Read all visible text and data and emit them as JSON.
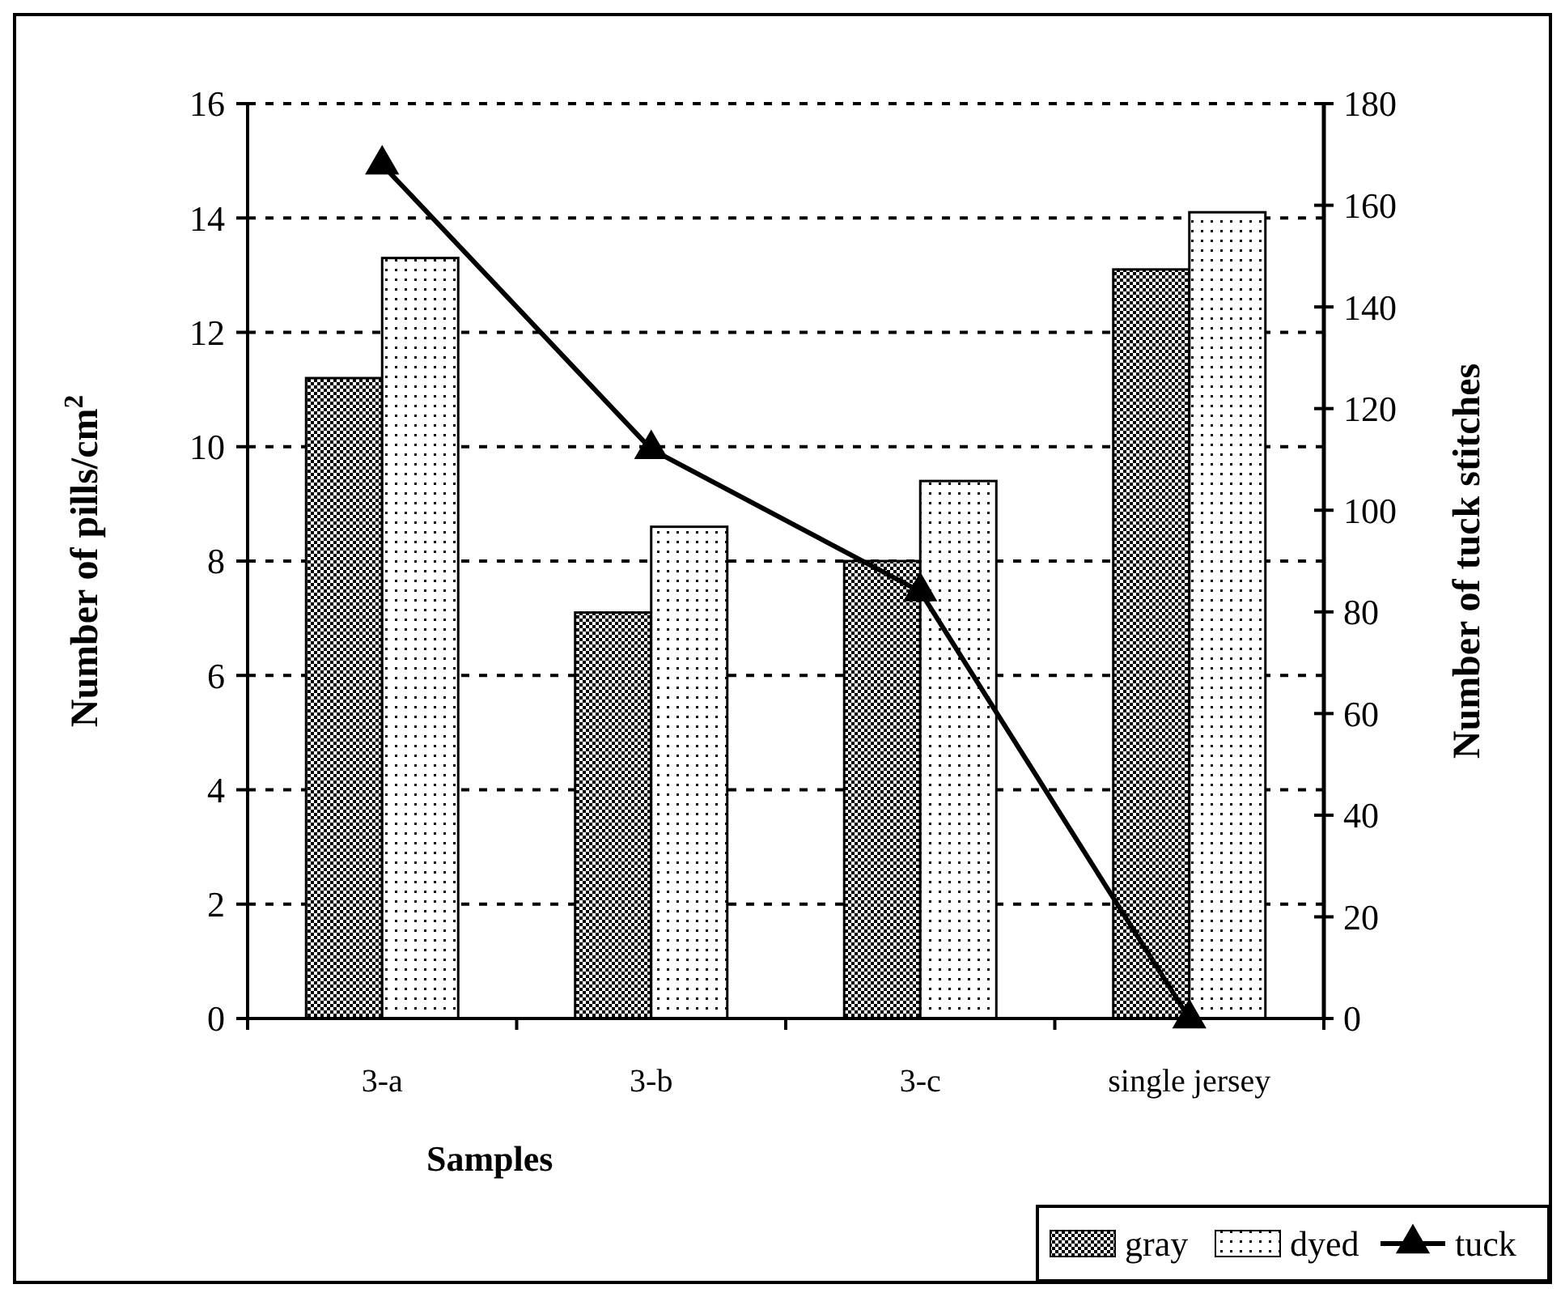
{
  "chart_data": {
    "type": "bar",
    "xlabel": "Samples",
    "ylabel": "Number of pills/cm$^{2}$",
    "y2label": "Number of tuck stitches",
    "categories": [
      "3-a",
      "3-b",
      "3-c",
      "single jersey"
    ],
    "series": [
      {
        "name": "gray",
        "color": "#000000",
        "values": [
          11.2,
          7.1,
          8.0,
          13.1
        ]
      },
      {
        "name": "dyed",
        "color": "#000000",
        "values": [
          13.3,
          8.6,
          9.4,
          14.1
        ]
      },
      {
        "name": "tuck",
        "type": "line",
        "axis": "y2",
        "color": "#000000",
        "values": [
          168,
          112,
          84,
          0
        ],
        "marker": "triangle",
        "line_style": "solid"
      }
    ],
    "ylim": [
      0,
      16
    ],
    "yticks": [
      0,
      2,
      4,
      6,
      8,
      10,
      12,
      14,
      16
    ],
    "y2lim": [
      0,
      180
    ],
    "y2ticks": [
      0,
      20,
      40,
      60,
      80,
      100,
      120,
      140,
      160,
      180
    ],
    "grid": "y",
    "legend": "bottom right"
  }
}
